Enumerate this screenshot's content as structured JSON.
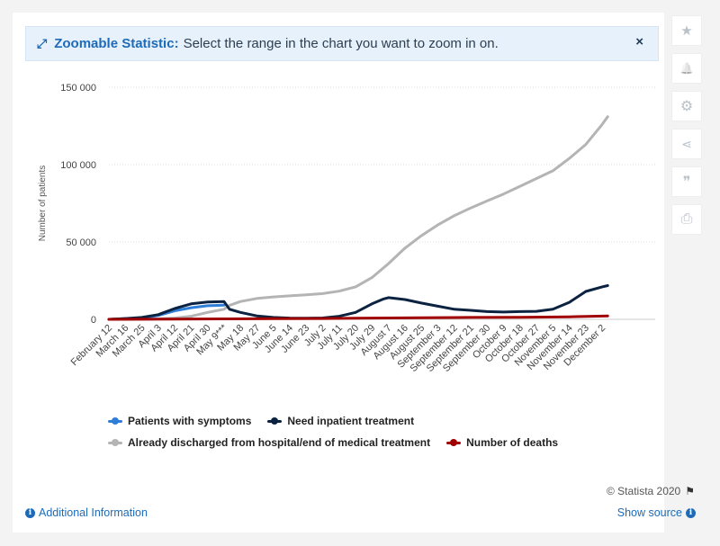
{
  "banner": {
    "title": "Zoomable Statistic:",
    "text": "Select the range in the chart you want to zoom in on.",
    "close_symbol": "×"
  },
  "side_tools": [
    {
      "name": "star-icon",
      "glyph": "★"
    },
    {
      "name": "bell-icon",
      "glyph": "🔔"
    },
    {
      "name": "gear-icon",
      "glyph": "⚙"
    },
    {
      "name": "share-icon",
      "glyph": "⋖"
    },
    {
      "name": "quote-icon",
      "glyph": "❞"
    },
    {
      "name": "print-icon",
      "glyph": "⎙"
    }
  ],
  "footer": {
    "credit": "© Statista 2020",
    "additional_info": "Additional Information",
    "show_source": "Show source",
    "info_glyph": "i"
  },
  "chart_data": {
    "type": "line",
    "ylabel": "Number of patients",
    "xlabel": "",
    "ylim": [
      0,
      150000
    ],
    "yticks": [
      0,
      50000,
      100000,
      150000
    ],
    "ytick_labels": [
      "0",
      "50 000",
      "100 000",
      "150 000"
    ],
    "grid": true,
    "legend_position": "bottom",
    "x_count": 300,
    "x_tick_labels": [
      {
        "i": 0,
        "label": "February 12"
      },
      {
        "i": 9,
        "label": "March 16"
      },
      {
        "i": 18,
        "label": "March 25"
      },
      {
        "i": 27,
        "label": "April 3"
      },
      {
        "i": 36,
        "label": "April 12"
      },
      {
        "i": 45,
        "label": "April 21"
      },
      {
        "i": 54,
        "label": "April 30"
      },
      {
        "i": 63,
        "label": "May 9***"
      },
      {
        "i": 72,
        "label": "May 18"
      },
      {
        "i": 81,
        "label": "May 27"
      },
      {
        "i": 90,
        "label": "June 5"
      },
      {
        "i": 99,
        "label": "June 14"
      },
      {
        "i": 108,
        "label": "June 23"
      },
      {
        "i": 117,
        "label": "July 2"
      },
      {
        "i": 126,
        "label": "July 11"
      },
      {
        "i": 135,
        "label": "July 20"
      },
      {
        "i": 144,
        "label": "July 29"
      },
      {
        "i": 153,
        "label": "August 7"
      },
      {
        "i": 162,
        "label": "August 16"
      },
      {
        "i": 171,
        "label": "August 25"
      },
      {
        "i": 180,
        "label": "September 3"
      },
      {
        "i": 189,
        "label": "September 12"
      },
      {
        "i": 198,
        "label": "September 21"
      },
      {
        "i": 207,
        "label": "September 30"
      },
      {
        "i": 216,
        "label": "October 9"
      },
      {
        "i": 225,
        "label": "October 18"
      },
      {
        "i": 234,
        "label": "October 27"
      },
      {
        "i": 243,
        "label": "November 5"
      },
      {
        "i": 252,
        "label": "November 14"
      },
      {
        "i": 261,
        "label": "November 23"
      },
      {
        "i": 270,
        "label": "December 2"
      }
    ],
    "series": [
      {
        "name": "Patients with symptoms",
        "color": "#2f7ed8",
        "points": [
          [
            0,
            0
          ],
          [
            9,
            400
          ],
          [
            18,
            900
          ],
          [
            27,
            2500
          ],
          [
            36,
            5500
          ],
          [
            45,
            7500
          ],
          [
            54,
            8800
          ],
          [
            63,
            9200
          ]
        ]
      },
      {
        "name": "Need inpatient treatment",
        "color": "#0b2341",
        "points": [
          [
            0,
            0
          ],
          [
            9,
            500
          ],
          [
            18,
            1200
          ],
          [
            27,
            3000
          ],
          [
            36,
            7000
          ],
          [
            45,
            10000
          ],
          [
            54,
            11200
          ],
          [
            63,
            11500
          ],
          [
            66,
            6500
          ],
          [
            72,
            4500
          ],
          [
            81,
            2200
          ],
          [
            90,
            1200
          ],
          [
            99,
            800
          ],
          [
            108,
            700
          ],
          [
            117,
            900
          ],
          [
            126,
            2000
          ],
          [
            135,
            4500
          ],
          [
            144,
            10000
          ],
          [
            150,
            13000
          ],
          [
            153,
            14000
          ],
          [
            162,
            12800
          ],
          [
            171,
            10500
          ],
          [
            180,
            8500
          ],
          [
            189,
            6500
          ],
          [
            198,
            5800
          ],
          [
            207,
            5000
          ],
          [
            216,
            4700
          ],
          [
            225,
            5000
          ],
          [
            234,
            5200
          ],
          [
            243,
            6500
          ],
          [
            252,
            11000
          ],
          [
            261,
            18000
          ],
          [
            270,
            21000
          ],
          [
            273,
            21800
          ]
        ]
      },
      {
        "name": "Already discharged from hospital/end of medical treatment",
        "color": "#b4b4b4",
        "points": [
          [
            0,
            0
          ],
          [
            27,
            300
          ],
          [
            36,
            800
          ],
          [
            45,
            2000
          ],
          [
            54,
            4500
          ],
          [
            63,
            6500
          ],
          [
            66,
            9000
          ],
          [
            72,
            11500
          ],
          [
            81,
            13500
          ],
          [
            90,
            14500
          ],
          [
            99,
            15200
          ],
          [
            108,
            15800
          ],
          [
            117,
            16600
          ],
          [
            126,
            18200
          ],
          [
            135,
            21000
          ],
          [
            144,
            27000
          ],
          [
            153,
            36000
          ],
          [
            162,
            46000
          ],
          [
            171,
            54000
          ],
          [
            180,
            61000
          ],
          [
            189,
            67000
          ],
          [
            198,
            72000
          ],
          [
            207,
            76500
          ],
          [
            216,
            81000
          ],
          [
            225,
            86000
          ],
          [
            234,
            91000
          ],
          [
            243,
            96000
          ],
          [
            252,
            104000
          ],
          [
            261,
            113000
          ],
          [
            270,
            126000
          ],
          [
            273,
            131000
          ]
        ]
      },
      {
        "name": "Number of deaths",
        "color": "#a10000",
        "points": [
          [
            0,
            0
          ],
          [
            36,
            200
          ],
          [
            63,
            300
          ],
          [
            90,
            400
          ],
          [
            117,
            500
          ],
          [
            144,
            800
          ],
          [
            171,
            1000
          ],
          [
            198,
            1200
          ],
          [
            225,
            1300
          ],
          [
            252,
            1600
          ],
          [
            273,
            2200
          ]
        ]
      }
    ]
  }
}
